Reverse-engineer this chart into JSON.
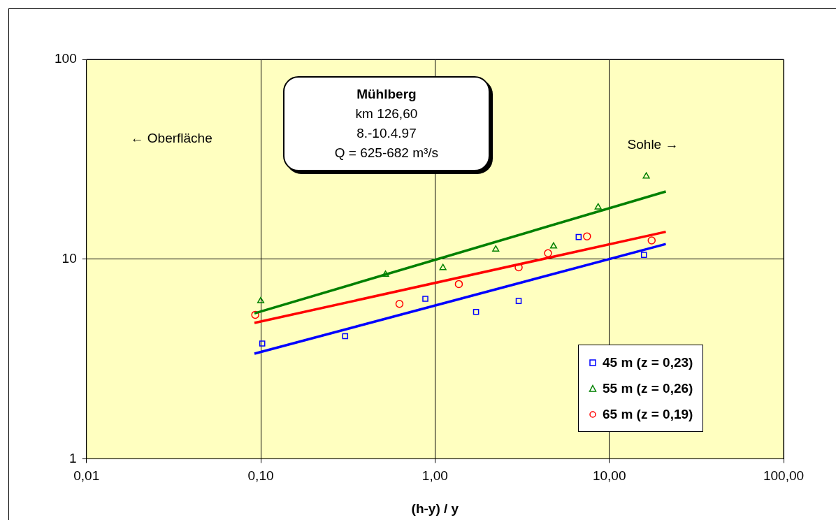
{
  "chart_data": {
    "type": "scatter",
    "xlabel": "(h-y) / y",
    "log": "xy",
    "xlim": [
      0.01,
      100
    ],
    "xticks": [
      {
        "value": 0.01,
        "label": "0,01"
      },
      {
        "value": 0.1,
        "label": "0,10"
      },
      {
        "value": 1,
        "label": "1,00"
      },
      {
        "value": 10,
        "label": "10,00"
      },
      {
        "value": 100,
        "label": "100,00"
      }
    ],
    "ylim": [
      1,
      100
    ],
    "yticks": [
      1,
      10,
      100
    ],
    "grid": true,
    "legend": "bottom right",
    "annotations": [
      "Mühlberg",
      "km 126,60",
      "8.-10.4.97",
      "Q = 625-682 m³/s",
      "← Oberfläche",
      "Sohle →"
    ],
    "series": [
      {
        "type": "line",
        "color": "#0000ff",
        "x": [
          0.092,
          21.1
        ],
        "values": [
          3.36,
          11.9
        ],
        "marker": "none"
      },
      {
        "type": "line",
        "color": "#ff0000",
        "x": [
          0.092,
          21.1
        ],
        "values": [
          4.79,
          13.7
        ],
        "marker": "none"
      },
      {
        "type": "line",
        "color": "#008000",
        "x": [
          0.092,
          21.1
        ],
        "values": [
          5.35,
          21.8
        ],
        "marker": "none"
      },
      {
        "name": "45 m (z = 0,23)",
        "color": "#0000ff",
        "marker": "square",
        "x": [
          0.102,
          0.305,
          0.88,
          1.72,
          3.02,
          6.67,
          15.8
        ],
        "values": [
          3.78,
          4.11,
          6.33,
          5.44,
          6.17,
          12.9,
          10.5
        ]
      },
      {
        "name": "55 m (z = 0,26)",
        "color": "#008000",
        "marker": "triangle",
        "x": [
          0.1,
          0.52,
          1.11,
          2.23,
          4.79,
          8.63,
          16.3
        ],
        "values": [
          6.17,
          8.37,
          9.04,
          11.2,
          11.6,
          18.2,
          26.0
        ]
      },
      {
        "name": "65 m (z = 0,19)",
        "color": "#ff0000",
        "marker": "circle",
        "x": [
          0.093,
          0.625,
          1.37,
          3.02,
          4.45,
          7.45,
          17.5
        ],
        "values": [
          5.26,
          5.97,
          7.5,
          9.1,
          10.7,
          13.0,
          12.4
        ]
      }
    ]
  }
}
